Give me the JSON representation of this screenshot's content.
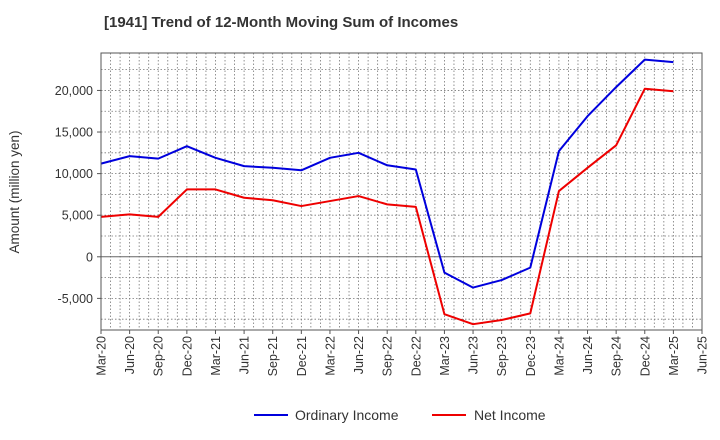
{
  "chart_data": {
    "type": "line",
    "title": "[1941]  Trend of 12-Month Moving Sum of Incomes",
    "xlabel": "",
    "ylabel": "Amount (million yen)",
    "ylim": [
      -8800,
      24500
    ],
    "yticks": [
      -5000,
      0,
      5000,
      10000,
      15000,
      20000
    ],
    "ytick_labels": [
      "-5,000",
      "0",
      "5,000",
      "10,000",
      "15,000",
      "20,000"
    ],
    "categories": [
      "Mar-20",
      "Jun-20",
      "Sep-20",
      "Dec-20",
      "Mar-21",
      "Jun-21",
      "Sep-21",
      "Dec-21",
      "Mar-22",
      "Jun-22",
      "Sep-22",
      "Dec-22",
      "Mar-23",
      "Jun-23",
      "Sep-23",
      "Dec-23",
      "Mar-24",
      "Jun-24",
      "Sep-24",
      "Dec-24",
      "Mar-25",
      "Jun-25"
    ],
    "grid": true,
    "legend_position": "bottom",
    "series": [
      {
        "name": "Ordinary Income",
        "color": "#0000dd",
        "values": [
          11200,
          12100,
          11800,
          13300,
          11900,
          10900,
          10700,
          10400,
          11900,
          12500,
          11000,
          10500,
          -1900,
          -3700,
          -2800,
          -1300,
          12700,
          16900,
          20400,
          23700,
          23400,
          null
        ]
      },
      {
        "name": "Net Income",
        "color": "#ee0000",
        "values": [
          4800,
          5100,
          4800,
          8100,
          8100,
          7100,
          6800,
          6100,
          6700,
          7300,
          6300,
          6000,
          -6900,
          -8100,
          -7600,
          -6800,
          7900,
          10700,
          13400,
          20200,
          19900,
          null
        ]
      }
    ]
  }
}
